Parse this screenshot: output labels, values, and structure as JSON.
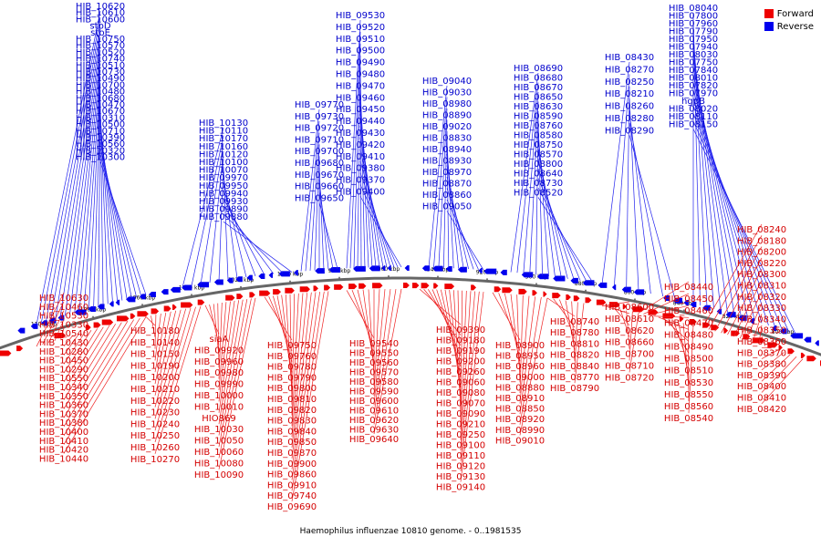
{
  "caption": "Haemophilus influenzae 10810 genome. - 0..1981535",
  "legend": [
    {
      "label": "Forward",
      "color": "#ee0000"
    },
    {
      "label": "Reverse",
      "color": "#0000ee"
    }
  ],
  "colors": {
    "forward": "#ee0000",
    "reverse": "#0000ee",
    "forward_line": "#ee2222",
    "reverse_line": "#2222ee",
    "backbone": "#666666"
  },
  "scale_ticks": [
    "1100 kbp",
    "1080 kbp",
    "1060 kbp",
    "1040 kbp",
    "1020 kbp",
    "1000 kbp",
    "980 kbp",
    "960 kbp",
    "940 kbp",
    "920 kbp",
    "900 kbp",
    "880 kbp",
    "860 kbp",
    "840 kbp",
    "820 kbp",
    "800 kbp"
  ],
  "reverse_genes": [
    "HIB_10620",
    "HIB_10610",
    "HIB_10600",
    "stbD",
    "stbE",
    "HIB_10750",
    "HIB_10570",
    "HIB_10520",
    "HIB_10740",
    "HIB_10510",
    "HIB_10730",
    "HIB_10490",
    "HIB_10700",
    "HIB_10480",
    "HIB_10680",
    "HIB_10470",
    "HIB_10670",
    "HIB_10310",
    "HIB_10500",
    "HIB_10710",
    "HIB_10390",
    "HIB_10560",
    "HIB_10320",
    "HIB_10300",
    "HIB_10130",
    "HIB_10110",
    "HIB_10170",
    "HIB_10160",
    "HIB_10120",
    "HIB_10100",
    "HIB_10070",
    "HIB_09970",
    "HIB_09950",
    "HIB_09940",
    "HIB_09930",
    "HIB_09890",
    "HIB_09880",
    "HIB_09770",
    "HIB_09730",
    "HIB_09720",
    "HIB_09710",
    "HIB_09700",
    "HIB_09680",
    "HIB_09670",
    "HIB_09660",
    "HIB_09650",
    "HIB_09530",
    "HIB_09520",
    "HIB_09510",
    "HIB_09500",
    "HIB_09490",
    "HIB_09480",
    "HIB_09470",
    "HIB_09460",
    "HIB_09450",
    "HIB_09440",
    "HIB_09430",
    "HIB_09420",
    "HIB_09410",
    "HIB_09380",
    "HIB_09370",
    "HIB_09400",
    "HIB_09040",
    "HIB_09030",
    "HIB_08980",
    "HIB_08890",
    "HIB_09020",
    "HIB_08830",
    "HIB_08940",
    "HIB_08930",
    "HIB_08970",
    "HIB_08870",
    "HIB_08860",
    "HIB_09050",
    "HIB_08690",
    "HIB_08680",
    "HIB_08670",
    "HIB_08650",
    "HIB_08630",
    "HIB_08590",
    "HIB_08760",
    "HIB_08580",
    "HIB_08750",
    "HIB_08570",
    "HIB_08800",
    "HIB_08640",
    "HIB_08730",
    "HIB_08520",
    "HIB_08430",
    "HIB_08270",
    "HIB_08250",
    "HIB_08210",
    "HIB_08260",
    "HIB_08280",
    "HIB_08290",
    "HIB_08040",
    "HIB_07800",
    "HIB_07960",
    "HIB_07790",
    "HIB_07950",
    "HIB_07940",
    "HIB_08030",
    "HIB_07750",
    "HIB_07840",
    "HIB_08010",
    "HIB_07820",
    "HIB_07970",
    "hgpB",
    "HIB_08020",
    "HIB_08110",
    "HIB_08150"
  ],
  "forward_genes": [
    "HIB_10630",
    "HIB_10460",
    "HIB_10530",
    "HIB_10330",
    "HIB_10540",
    "HIB_10430",
    "HIB_10280",
    "HIB_10450",
    "HIB_10290",
    "HIB_10550",
    "HIB_10340",
    "HIB_10350",
    "HIB_10360",
    "HIB_10370",
    "HIB_10380",
    "HIB_10400",
    "HIB_10410",
    "HIB_10420",
    "HIB_10440",
    "HIB_10180",
    "HIB_10140",
    "HIB_10150",
    "HIB_10190",
    "HIB_10200",
    "HIB_10210",
    "HIB_10220",
    "HIB_10230",
    "HIB_10240",
    "HIB_10250",
    "HIB_10260",
    "HIB_10270",
    "siaA",
    "HIB_09920",
    "HIB_09960",
    "HIB_09980",
    "HIB_09990",
    "HIB_10000",
    "HIB_10010",
    "HIO869",
    "HIB_10030",
    "HIB_10050",
    "HIB_10060",
    "HIB_10080",
    "HIB_10090",
    "HIB_09750",
    "HIB_09760",
    "HIB_09780",
    "HIB_09790",
    "HIB_09800",
    "HIB_09810",
    "HIB_09820",
    "HIB_09830",
    "HIB_09840",
    "HIB_09850",
    "HIB_09870",
    "HIB_09900",
    "HIB_09860",
    "HIB_09910",
    "HIB_09740",
    "HIB_09690",
    "HIB_09540",
    "HIB_09550",
    "HIB_09560",
    "HIB_09570",
    "HIB_09580",
    "HIB_09590",
    "HIB_09600",
    "HIB_09610",
    "HIB_09620",
    "HIB_09630",
    "HIB_09640",
    "HIB_09390",
    "HIB_09180",
    "HIB_09190",
    "HIB_09200",
    "HIB_09260",
    "HIB_09060",
    "HIB_09080",
    "HIB_09070",
    "HIB_09090",
    "HIB_09210",
    "HIB_09250",
    "HIB_09100",
    "HIB_09110",
    "HIB_09120",
    "HIB_09130",
    "HIB_09140",
    "HIB_08900",
    "HIB_08950",
    "HIB_08960",
    "HIB_09000",
    "HIB_08880",
    "HIB_08910",
    "HIB_08850",
    "HIB_08920",
    "HIB_08990",
    "HIB_09010",
    "HIB_08740",
    "HIB_08780",
    "HIB_08810",
    "HIB_08820",
    "HIB_08840",
    "HIB_08770",
    "HIB_08790",
    "HIB_08600",
    "HIB_08610",
    "HIB_08620",
    "HIB_08660",
    "HIB_08700",
    "HIB_08710",
    "HIB_08720",
    "HIB_08440",
    "HIB_08450",
    "HIB_08460",
    "HIB_08470",
    "HIB_08480",
    "HIB_08490",
    "HIB_08500",
    "HIB_08510",
    "HIB_08530",
    "HIB_08550",
    "HIB_08560",
    "HIB_08540",
    "HIB_08240",
    "HIB_08180",
    "HIB_08200",
    "HIB_08220",
    "HIB_08300",
    "HIB_08310",
    "HIB_08320",
    "HIB_08330",
    "HIB_08340",
    "HIB_08350",
    "HIB_08360",
    "HIB_08370",
    "HIB_08380",
    "HIB_08390",
    "HIB_08400",
    "HIB_08410",
    "HIB_08420"
  ]
}
